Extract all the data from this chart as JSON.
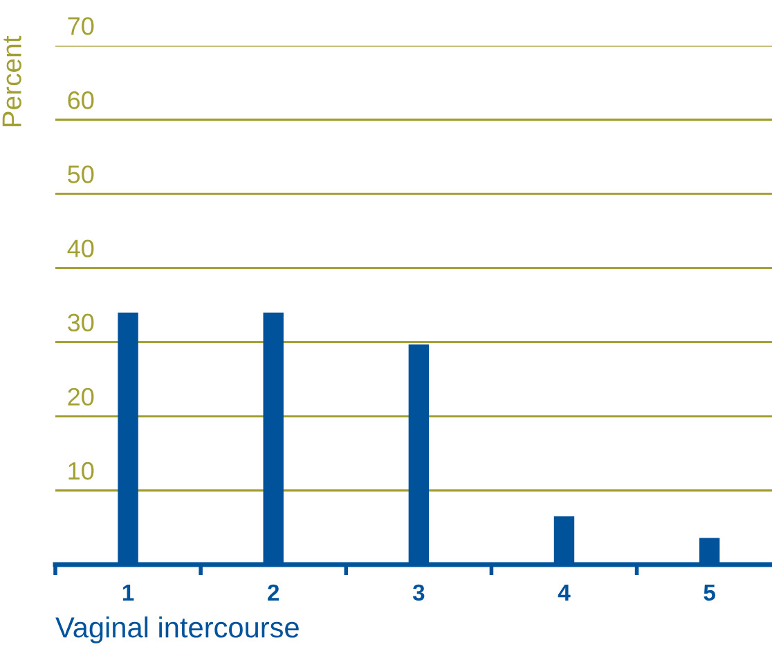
{
  "chart_data": {
    "type": "bar",
    "xlabel": "Vaginal intercourse",
    "ylabel": "Percent",
    "categories": [
      "1",
      "2",
      "3",
      "4",
      "5"
    ],
    "values": [
      34.0,
      34.0,
      29.7,
      6.5,
      3.6
    ],
    "color": "#00529b",
    "ylim": [
      0,
      70
    ],
    "yticks": [
      {
        "value": 0,
        "label": null
      },
      10,
      20,
      30,
      40,
      50,
      60,
      70
    ],
    "grid": "y"
  }
}
